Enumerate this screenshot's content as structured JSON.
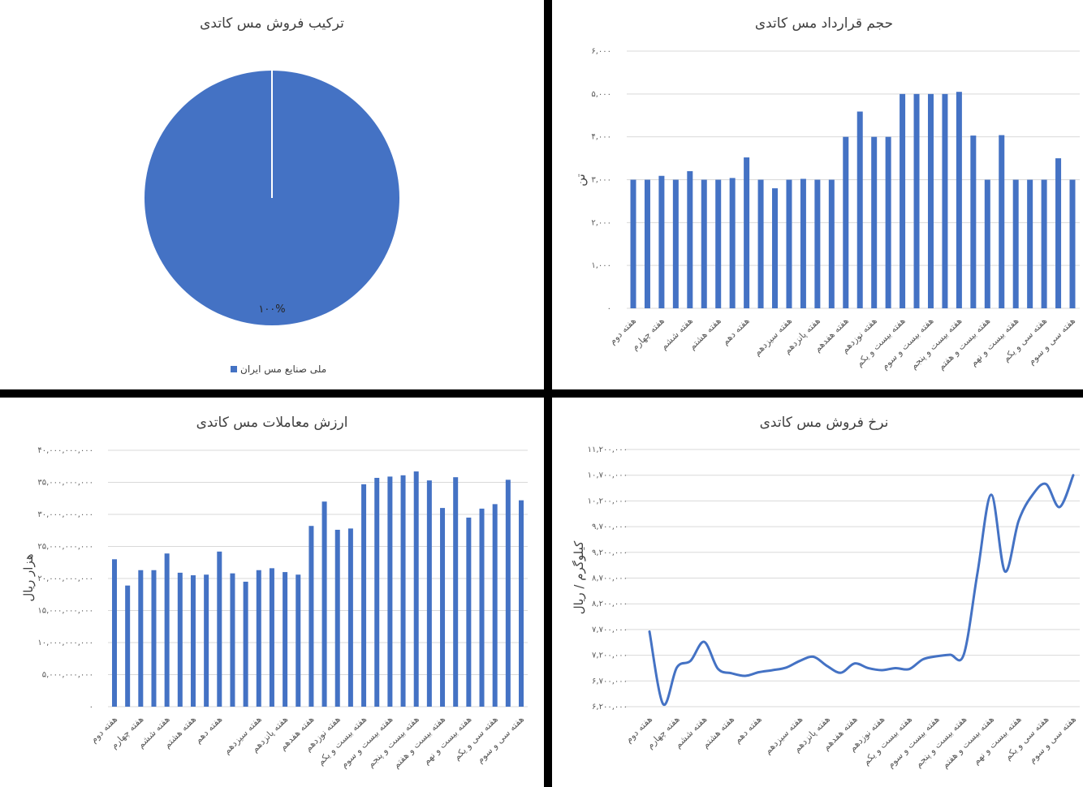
{
  "colors": {
    "series": "#4472C4",
    "grid": "#D9D9D9",
    "panel": "#FFFFFF",
    "background": "#000000"
  },
  "chart_data": [
    {
      "type": "pie",
      "title": "ترکیب فروش مس کاتدی",
      "slices": [
        {
          "name": "ملی صنایع مس ایران",
          "value": 100,
          "label": "۱۰۰%"
        }
      ],
      "legend": "bottom"
    },
    {
      "type": "bar",
      "title": "حجم قرارداد مس کاتدی",
      "ylabel": "تن",
      "ylim": [
        0,
        6000
      ],
      "grid": true,
      "yticks": [
        0,
        1000,
        2000,
        3000,
        4000,
        5000,
        6000
      ],
      "ytick_labels": [
        "۰",
        "۱,۰۰۰",
        "۲,۰۰۰",
        "۳,۰۰۰",
        "۴,۰۰۰",
        "۵,۰۰۰",
        "۶,۰۰۰"
      ],
      "categories": [
        "هفته دوم",
        "",
        "هفته چهارم",
        "",
        "هفته ششم",
        "",
        "هفته هشتم",
        "",
        "هفته دهم",
        "",
        "",
        "هفته سیزدهم",
        "",
        "هفته پانزدهم",
        "",
        "هفته هفدهم",
        "",
        "هفته نوزدهم",
        "",
        "هفته بیست و یکم",
        "",
        "هفته بیست و سوم",
        "",
        "هفته بیست و پنجم",
        "",
        "هفته بیست و هفتم",
        "",
        "هفته بیست و نهم",
        "",
        "هفته سی و یکم",
        "",
        "هفته سی و سوم"
      ],
      "values": [
        3000,
        3000,
        3090,
        3000,
        3200,
        3000,
        3000,
        3040,
        3520,
        3000,
        2800,
        3000,
        3020,
        3000,
        3000,
        4000,
        4590,
        4000,
        4000,
        5000,
        5000,
        5000,
        5000,
        5050,
        4030,
        3000,
        4040,
        3000,
        3000,
        3000,
        3500,
        3000
      ]
    },
    {
      "type": "bar",
      "title": "ارزش معاملات مس کاتدی",
      "ylabel": "هزار ریال",
      "ylim": [
        0,
        40000000000
      ],
      "grid": true,
      "yticks": [
        0,
        5000000000,
        10000000000,
        15000000000,
        20000000000,
        25000000000,
        30000000000,
        35000000000,
        40000000000
      ],
      "ytick_labels": [
        "۰",
        "۵,۰۰۰,۰۰۰,۰۰۰",
        "۱۰,۰۰۰,۰۰۰,۰۰۰",
        "۱۵,۰۰۰,۰۰۰,۰۰۰",
        "۲۰,۰۰۰,۰۰۰,۰۰۰",
        "۲۵,۰۰۰,۰۰۰,۰۰۰",
        "۳۰,۰۰۰,۰۰۰,۰۰۰",
        "۳۵,۰۰۰,۰۰۰,۰۰۰",
        "۴۰,۰۰۰,۰۰۰,۰۰۰"
      ],
      "categories": [
        "هفته دوم",
        "",
        "هفته چهارم",
        "",
        "هفته ششم",
        "",
        "هفته هشتم",
        "",
        "هفته دهم",
        "",
        "",
        "هفته سیزدهم",
        "",
        "هفته پانزدهم",
        "",
        "هفته هفدهم",
        "",
        "هفته نوزدهم",
        "",
        "هفته بیست و یکم",
        "",
        "هفته بیست و سوم",
        "",
        "هفته بیست و پنجم",
        "",
        "هفته بیست و هفتم",
        "",
        "هفته بیست و نهم",
        "",
        "هفته سی و یکم",
        "",
        "هفته سی و سوم"
      ],
      "values": [
        23000000000,
        18900000000,
        21300000000,
        21300000000,
        23900000000,
        20900000000,
        20500000000,
        20600000000,
        24200000000,
        20800000000,
        19500000000,
        21300000000,
        21600000000,
        21000000000,
        20600000000,
        28200000000,
        32000000000,
        27600000000,
        27800000000,
        34700000000,
        35700000000,
        35900000000,
        36100000000,
        36700000000,
        35300000000,
        31000000000,
        35800000000,
        29500000000,
        30900000000,
        31600000000,
        35400000000,
        32200000000
      ]
    },
    {
      "type": "line",
      "title": "نرخ فروش مس کاتدی",
      "ylabel": "کیلوگرم / ریال",
      "ylim": [
        6200000,
        11200000
      ],
      "grid": true,
      "smooth": true,
      "yticks": [
        6200000,
        6700000,
        7200000,
        7700000,
        8200000,
        8700000,
        9200000,
        9700000,
        10200000,
        10700000,
        11200000
      ],
      "ytick_labels": [
        "۶,۲۰۰,۰۰۰",
        "۶,۷۰۰,۰۰۰",
        "۷,۲۰۰,۰۰۰",
        "۷,۷۰۰,۰۰۰",
        "۸,۲۰۰,۰۰۰",
        "۸,۷۰۰,۰۰۰",
        "۹,۲۰۰,۰۰۰",
        "۹,۷۰۰,۰۰۰",
        "۱۰,۲۰۰,۰۰۰",
        "۱۰,۷۰۰,۰۰۰",
        "۱۱,۲۰۰,۰۰۰"
      ],
      "categories": [
        "هفته دوم",
        "",
        "هفته چهارم",
        "",
        "هفته ششم",
        "",
        "هفته هشتم",
        "",
        "هفته دهم",
        "",
        "",
        "هفته سیزدهم",
        "",
        "هفته پانزدهم",
        "",
        "هفته هفدهم",
        "",
        "هفته نوزدهم",
        "",
        "هفته بیست و یکم",
        "",
        "هفته بیست و سوم",
        "",
        "هفته بیست و پنجم",
        "",
        "هفته بیست و هفتم",
        "",
        "هفته بیست و نهم",
        "",
        "هفته سی و یکم",
        "",
        "هفته سی و سوم"
      ],
      "values": [
        7660000,
        6250000,
        6960000,
        7090000,
        7460000,
        6940000,
        6850000,
        6800000,
        6870000,
        6910000,
        6960000,
        7090000,
        7170000,
        6990000,
        6860000,
        7040000,
        6950000,
        6910000,
        6950000,
        6930000,
        7120000,
        7180000,
        7210000,
        7220000,
        8810000,
        10320000,
        8830000,
        9810000,
        10310000,
        10530000,
        10080000,
        10700000
      ]
    }
  ]
}
